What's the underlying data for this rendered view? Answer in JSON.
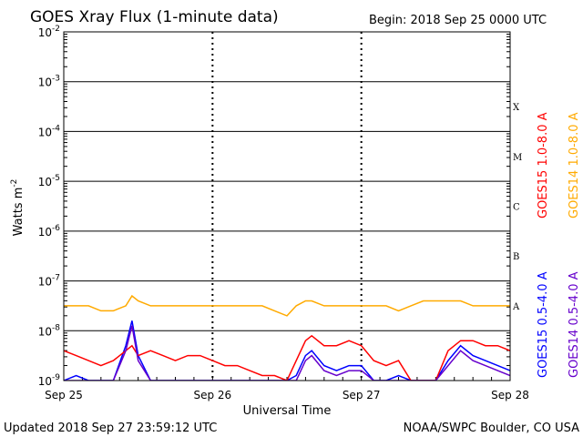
{
  "header": {
    "title": "GOES Xray Flux (1-minute data)",
    "begin": "Begin:  2018 Sep 25 0000 UTC"
  },
  "footer": {
    "updated": "Updated 2018 Sep 27 23:59:12 UTC",
    "source": "NOAA/SWPC Boulder, CO USA"
  },
  "chart_data": {
    "type": "line",
    "title": "GOES Xray Flux (1-minute data)",
    "xlabel": "Universal Time",
    "ylabel": "Watts m",
    "ylabel_sup": "-2",
    "yscale": "log",
    "ylim": [
      1e-09,
      0.01
    ],
    "xlim": [
      0,
      72
    ],
    "x_units": "hours since 2018 Sep 25 0000 UTC",
    "x_ticks": [
      {
        "x": 0,
        "label": "Sep 25"
      },
      {
        "x": 24,
        "label": "Sep 26"
      },
      {
        "x": 48,
        "label": "Sep 27"
      },
      {
        "x": 72,
        "label": "Sep 28"
      }
    ],
    "y_ticks": [
      {
        "exp": -2,
        "base": "10",
        "sup": "-2"
      },
      {
        "exp": -3,
        "base": "10",
        "sup": "-3"
      },
      {
        "exp": -4,
        "base": "10",
        "sup": "-4"
      },
      {
        "exp": -5,
        "base": "10",
        "sup": "-5"
      },
      {
        "exp": -6,
        "base": "10",
        "sup": "-6"
      },
      {
        "exp": -7,
        "base": "10",
        "sup": "-7"
      },
      {
        "exp": -8,
        "base": "10",
        "sup": "-8"
      },
      {
        "exp": -9,
        "base": "10",
        "sup": "-9"
      }
    ],
    "flare_classes": [
      {
        "label": "X",
        "exp": -4
      },
      {
        "label": "M",
        "exp": -5
      },
      {
        "label": "C",
        "exp": -6
      },
      {
        "label": "B",
        "exp": -7
      },
      {
        "label": "A",
        "exp": -8
      }
    ],
    "grid": true,
    "series": [
      {
        "name": "GOES15 0.5-4.0 A",
        "color": "#0000ff",
        "x": [
          0,
          2,
          4,
          6,
          8,
          10,
          11,
          12,
          14,
          16,
          18,
          20,
          22,
          24,
          26,
          28,
          30,
          32,
          34,
          36,
          37.5,
          39,
          40,
          42,
          44,
          46,
          48,
          50,
          52,
          54,
          56,
          58,
          60,
          62,
          64,
          66,
          68,
          70,
          72
        ],
        "y": [
          -9.0,
          -8.9,
          -9.0,
          -9.0,
          -9.0,
          -8.3,
          -7.8,
          -8.5,
          -9.0,
          -9.0,
          -9.0,
          -9.0,
          -9.0,
          -9.0,
          -9.0,
          -9.0,
          -9.0,
          -9.0,
          -9.0,
          -9.0,
          -8.9,
          -8.5,
          -8.4,
          -8.7,
          -8.8,
          -8.7,
          -8.7,
          -9.0,
          -9.0,
          -8.9,
          -9.0,
          -9.0,
          -9.0,
          -8.6,
          -8.3,
          -8.5,
          -8.6,
          -8.7,
          -8.8
        ]
      },
      {
        "name": "GOES15 1.0-8.0 A",
        "color": "#ff0000",
        "x": [
          0,
          2,
          4,
          6,
          8,
          10,
          11,
          12,
          14,
          16,
          18,
          20,
          22,
          24,
          26,
          28,
          30,
          32,
          34,
          36,
          37.5,
          39,
          40,
          42,
          44,
          46,
          48,
          50,
          52,
          54,
          56,
          58,
          60,
          62,
          64,
          66,
          68,
          70,
          72
        ],
        "y": [
          -8.4,
          -8.5,
          -8.6,
          -8.7,
          -8.6,
          -8.4,
          -8.3,
          -8.5,
          -8.4,
          -8.5,
          -8.6,
          -8.5,
          -8.5,
          -8.6,
          -8.7,
          -8.7,
          -8.8,
          -8.9,
          -8.9,
          -9.0,
          -8.6,
          -8.2,
          -8.1,
          -8.3,
          -8.3,
          -8.2,
          -8.3,
          -8.6,
          -8.7,
          -8.6,
          -9.0,
          -9.0,
          -9.0,
          -8.4,
          -8.2,
          -8.2,
          -8.3,
          -8.3,
          -8.4
        ]
      },
      {
        "name": "GOES14 0.5-4.0 A",
        "color": "#6600cc",
        "x": [
          0,
          2,
          4,
          6,
          8,
          10,
          11,
          12,
          14,
          16,
          18,
          20,
          22,
          24,
          26,
          28,
          30,
          32,
          34,
          36,
          37.5,
          39,
          40,
          42,
          44,
          46,
          48,
          50,
          52,
          54,
          56,
          58,
          60,
          62,
          64,
          66,
          68,
          70,
          72
        ],
        "y": [
          -9.0,
          -9.0,
          -9.0,
          -9.0,
          -9.0,
          -8.4,
          -7.9,
          -8.6,
          -9.0,
          -9.0,
          -9.0,
          -9.0,
          -9.0,
          -9.0,
          -9.0,
          -9.0,
          -9.0,
          -9.0,
          -9.0,
          -9.0,
          -9.0,
          -8.6,
          -8.5,
          -8.8,
          -8.9,
          -8.8,
          -8.8,
          -9.0,
          -9.0,
          -9.0,
          -9.0,
          -9.0,
          -9.0,
          -8.7,
          -8.4,
          -8.6,
          -8.7,
          -8.8,
          -8.9
        ]
      },
      {
        "name": "GOES14 1.0-8.0 A",
        "color": "#ffaa00",
        "x": [
          0,
          2,
          4,
          6,
          8,
          10,
          11,
          12,
          14,
          16,
          18,
          20,
          22,
          24,
          26,
          28,
          30,
          32,
          34,
          36,
          37.5,
          39,
          40,
          42,
          44,
          46,
          48,
          50,
          52,
          54,
          56,
          58,
          60,
          62,
          64,
          66,
          68,
          70,
          72
        ],
        "y": [
          -7.5,
          -7.5,
          -7.5,
          -7.6,
          -7.6,
          -7.5,
          -7.3,
          -7.4,
          -7.5,
          -7.5,
          -7.5,
          -7.5,
          -7.5,
          -7.5,
          -7.5,
          -7.5,
          -7.5,
          -7.5,
          -7.6,
          -7.7,
          -7.5,
          -7.4,
          -7.4,
          -7.5,
          -7.5,
          -7.5,
          -7.5,
          -7.5,
          -7.5,
          -7.6,
          -7.5,
          -7.4,
          -7.4,
          -7.4,
          -7.4,
          -7.5,
          -7.5,
          -7.5,
          -7.5
        ]
      }
    ]
  }
}
